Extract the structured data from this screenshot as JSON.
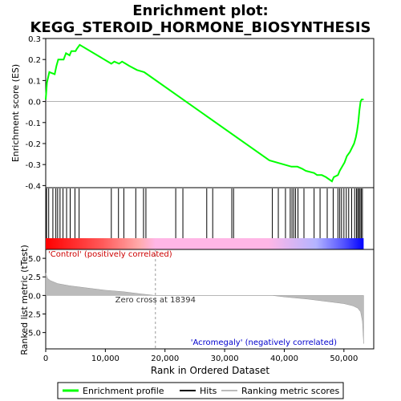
{
  "chart_data": {
    "type": "line",
    "title_line1": "Enrichment plot:",
    "title_line2": "KEGG_STEROID_HORMONE_BIOSYNTHESIS",
    "xlabel": "Rank in Ordered Dataset",
    "xlim": [
      0,
      55000
    ],
    "x_ticks": [
      0,
      10000,
      20000,
      30000,
      40000,
      50000
    ],
    "x_tick_labels": [
      "0",
      "10,000",
      "20,000",
      "30,000",
      "40,000",
      "50,000"
    ],
    "es_panel": {
      "ylabel": "Enrichment score (ES)",
      "ylim": [
        -0.41,
        0.3
      ],
      "y_ticks": [
        0.3,
        0.2,
        0.1,
        0.0,
        -0.1,
        -0.2,
        -0.3,
        -0.4
      ],
      "y_tick_labels": [
        "0.3",
        "0.2",
        "0.1",
        "0.0",
        "-0.1",
        "-0.2",
        "-0.3",
        "-0.4"
      ],
      "series": [
        {
          "name": "Enrichment profile",
          "color": "#00ff00",
          "x": [
            0,
            200,
            600,
            1500,
            1800,
            2100,
            3000,
            3400,
            4000,
            4300,
            5000,
            5200,
            5700,
            11000,
            11500,
            12300,
            12800,
            13400,
            14000,
            15300,
            16500,
            17000,
            37500,
            41200,
            41600,
            42200,
            43000,
            43600,
            45000,
            45500,
            46300,
            47000,
            48000,
            48300,
            49000,
            49300,
            49700,
            50100,
            50500,
            51000,
            51700,
            52000,
            52200,
            52400,
            52600,
            52800,
            53000,
            53300
          ],
          "values": [
            0.01,
            0.09,
            0.14,
            0.13,
            0.17,
            0.2,
            0.2,
            0.23,
            0.22,
            0.24,
            0.24,
            0.25,
            0.27,
            0.18,
            0.19,
            0.18,
            0.19,
            0.18,
            0.17,
            0.15,
            0.14,
            0.13,
            -0.28,
            -0.31,
            -0.31,
            -0.31,
            -0.32,
            -0.33,
            -0.34,
            -0.35,
            -0.35,
            -0.36,
            -0.38,
            -0.36,
            -0.35,
            -0.33,
            -0.31,
            -0.29,
            -0.26,
            -0.24,
            -0.2,
            -0.17,
            -0.14,
            -0.1,
            -0.04,
            0.0,
            0.01,
            0.01
          ]
        }
      ]
    },
    "hits": {
      "name": "Hits",
      "color": "#000000",
      "positions": [
        150,
        500,
        1200,
        1700,
        2000,
        2400,
        2900,
        3500,
        4100,
        4900,
        5600,
        11000,
        12200,
        13100,
        15100,
        16400,
        16800,
        21800,
        23000,
        27000,
        28000,
        31200,
        31500,
        38000,
        39000,
        40200,
        41000,
        41300,
        41600,
        41900,
        42300,
        43300,
        45000,
        46000,
        47200,
        48200,
        49000,
        49300,
        49600,
        50000,
        50400,
        50800,
        51300,
        51800,
        52100,
        52300,
        52500,
        52700,
        52900,
        53100
      ]
    },
    "rank_colorbar": {
      "positive_color": "#ff0000",
      "neutral_color": "#ffb6e6",
      "negative_color": "#0000ff",
      "zero_cross_x": 18394
    },
    "metric_panel": {
      "ylabel": "Ranked list metric (tTest)",
      "ylim": [
        -7.2,
        6.2
      ],
      "y_ticks": [
        5.0,
        2.5,
        0.0,
        -2.5,
        -5.0
      ],
      "y_tick_labels": [
        "5.0",
        "2.5",
        "0.0",
        "-2.5",
        "-5.0"
      ],
      "fill_color": "#bbbbbb",
      "x": [
        0,
        300,
        800,
        2000,
        4000,
        7000,
        10000,
        13000,
        16000,
        18394,
        22000,
        30000,
        38000,
        40000,
        44000,
        48000,
        50000,
        51500,
        52300,
        52800,
        53100,
        53300
      ],
      "values": [
        3.0,
        2.3,
        2.0,
        1.6,
        1.3,
        1.0,
        0.7,
        0.5,
        0.2,
        0.0,
        0.0,
        0.0,
        0.0,
        -0.2,
        -0.5,
        -0.9,
        -1.1,
        -1.4,
        -1.7,
        -2.2,
        -3.5,
        -6.5
      ]
    },
    "annotations": {
      "positive_label": "'Control' (positively correlated)",
      "negative_label": "'Acromegaly' (negatively correlated)",
      "zero_cross_label": "Zero cross at 18394"
    },
    "legend": {
      "placement": "bottom",
      "items": [
        {
          "label": "Enrichment profile",
          "color": "#00ff00"
        },
        {
          "label": "Hits",
          "color": "#000000"
        },
        {
          "label": "Ranking metric scores",
          "color": "#bbbbbb"
        }
      ]
    }
  }
}
